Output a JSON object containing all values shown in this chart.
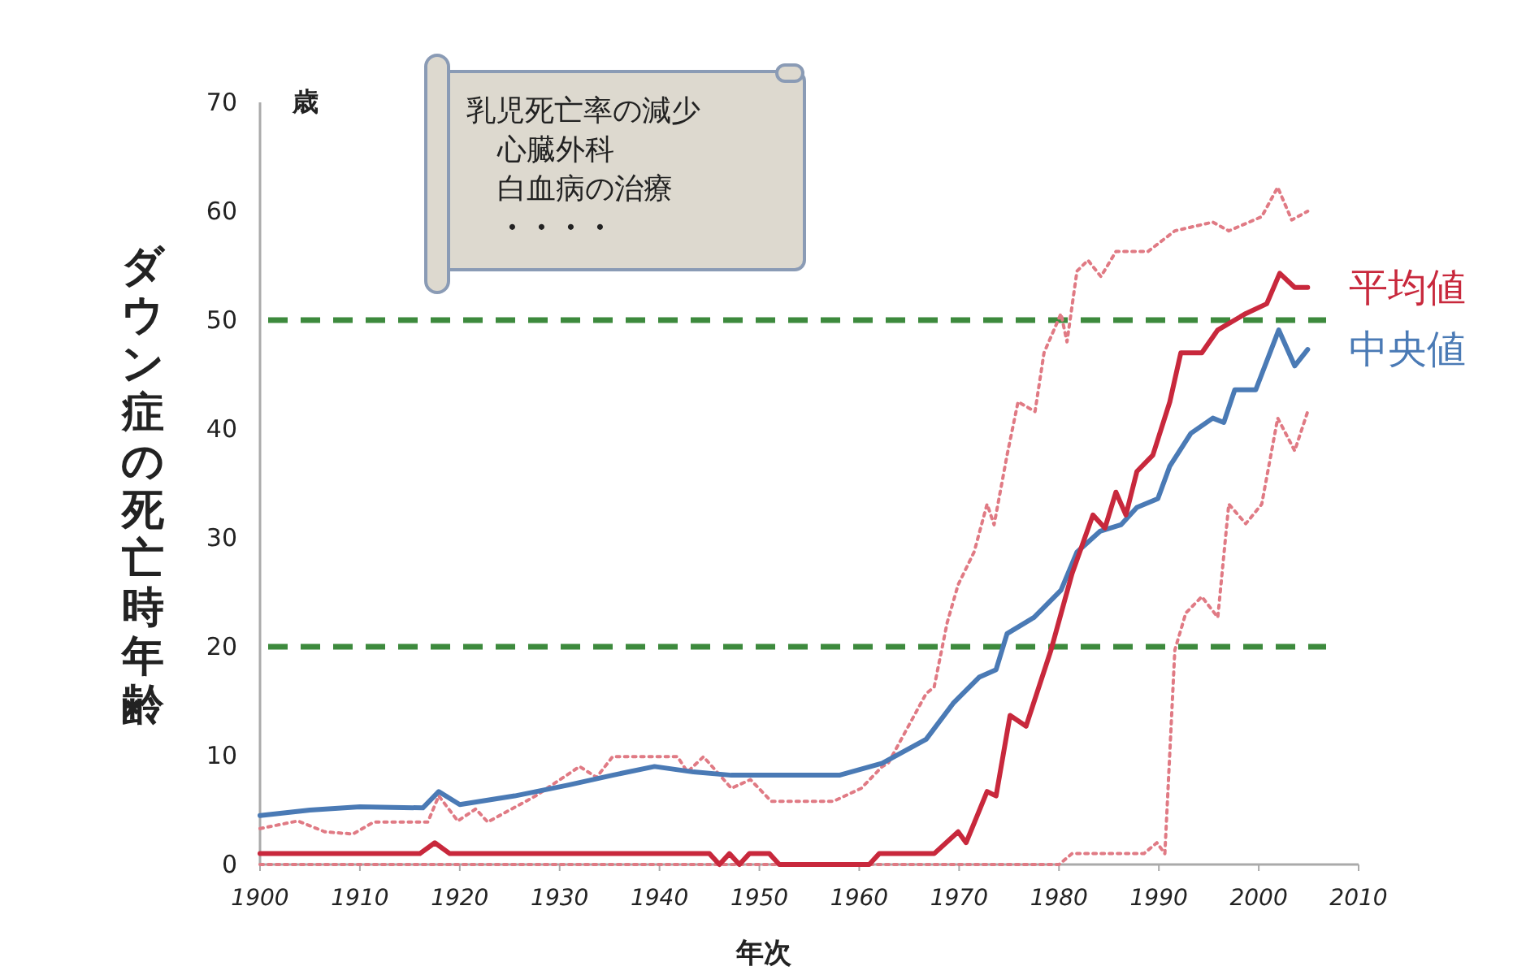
{
  "chart_data": {
    "type": "line",
    "xlabel": "年次",
    "ylabel": "ダウン症の死亡時年齢",
    "annotations": [
      "歳",
      "乳児死亡率の減少",
      "心臓外科",
      "白血病の治療",
      "・・・・"
    ],
    "xlim": [
      1900,
      2010
    ],
    "xticks": [
      1900,
      1910,
      1920,
      1930,
      1940,
      1950,
      1960,
      1970,
      1980,
      1990,
      2000,
      2010
    ],
    "ylim": [
      0,
      70
    ],
    "yticks": [
      0,
      10,
      20,
      30,
      40,
      50,
      60,
      70
    ],
    "ref_lines": [
      {
        "axis": "y",
        "value": 20,
        "label": null,
        "color": "#3d8a3d",
        "line_style": "dashed"
      },
      {
        "axis": "y",
        "value": 50,
        "label": null,
        "color": "#3d8a3d",
        "line_style": "dashed"
      }
    ],
    "series": [
      {
        "color": "#e07a84",
        "line_style": "dotted",
        "x": [
          1900,
          1903.8,
          1906.5,
          1909.3,
          1911.4,
          1916.8,
          1917.9,
          1919.8,
          1921.6,
          1922.8,
          1927.6,
          1932,
          1933.7,
          1935.3,
          1941.8,
          1942.8,
          1944.4,
          1947.2,
          1949.1,
          1951.2,
          1957.4,
          1960.2,
          1962.3,
          1962.9,
          1966.7,
          1967.5,
          1968.8,
          1969.9,
          1971.5,
          1972.8,
          1973.5,
          1974.8,
          1975.9,
          1977.6,
          1978.5,
          1980.2,
          1980.8,
          1981.8,
          1982.9,
          1984.2,
          1985.7,
          1988.9,
          1991.6,
          1995.4,
          1997,
          2000.3,
          2001.9,
          2003.3,
          2004.9
        ],
        "values": [
          3.3,
          4,
          3,
          2.8,
          3.9,
          3.9,
          6.3,
          4,
          5.1,
          3.9,
          6.3,
          9,
          8,
          9.9,
          9.9,
          8.5,
          9.9,
          7,
          7.8,
          5.8,
          5.8,
          7,
          9,
          9.3,
          15.7,
          16.3,
          22.2,
          25.7,
          28.7,
          33.1,
          31.2,
          37.6,
          42.5,
          41.6,
          47,
          50.6,
          48,
          54.5,
          55.5,
          54,
          56.3,
          56.3,
          58.2,
          59,
          58.2,
          59.5,
          62.2,
          59.2,
          60
        ]
      },
      {
        "color": "#e07a84",
        "line_style": "dotted",
        "x": [
          1900,
          1980,
          1981.3,
          1988.5,
          1989.8,
          1990.6,
          1991.6,
          1992.7,
          1994.3,
          1995.9,
          1997,
          1998.7,
          2000.3,
          2001.9,
          2003.6,
          2004.9
        ],
        "values": [
          0,
          0,
          1,
          1,
          2,
          1,
          19.7,
          23.1,
          24.6,
          22.7,
          33.1,
          31.3,
          33.1,
          41,
          38,
          41.6
        ]
      },
      {
        "name": "中央値",
        "color": "#4a7ab5",
        "line_style": "solid",
        "x": [
          1900,
          1905,
          1910,
          1916.3,
          1917.9,
          1920,
          1925.5,
          1930.9,
          1935.3,
          1939.5,
          1943.4,
          1947.2,
          1952.5,
          1958,
          1962.3,
          1966.7,
          1969.4,
          1972,
          1973.7,
          1974.8,
          1977.5,
          1980.2,
          1981.8,
          1984.1,
          1986.2,
          1987.8,
          1989.9,
          1991.1,
          1993.2,
          1995.4,
          1996.5,
          1997.6,
          1999.7,
          2002,
          2003.6,
          2004.9
        ],
        "values": [
          4.5,
          5,
          5.3,
          5.2,
          6.7,
          5.5,
          6.3,
          7.3,
          8.2,
          9,
          8.5,
          8.2,
          8.2,
          8.2,
          9.3,
          11.5,
          14.8,
          17.2,
          17.9,
          21.2,
          22.7,
          25.2,
          28.7,
          30.6,
          31.2,
          32.8,
          33.6,
          36.6,
          39.6,
          41,
          40.6,
          43.6,
          43.6,
          49.1,
          45.8,
          47.3
        ]
      },
      {
        "name": "平均値",
        "color": "#c8283c",
        "line_style": "solid",
        "x": [
          1900,
          1916,
          1917.5,
          1919,
          1945,
          1946,
          1947,
          1948,
          1949,
          1951,
          1952,
          1961,
          1962,
          1967.5,
          1969.9,
          1970.7,
          1972.8,
          1973.7,
          1975.1,
          1976.7,
          1979.2,
          1981.3,
          1983.4,
          1984.6,
          1985.7,
          1986.7,
          1987.8,
          1989.4,
          1991.1,
          1992.2,
          1994.3,
          1995.9,
          1998.7,
          2000.8,
          2002.1,
          2003.6,
          2004.9
        ],
        "values": [
          1,
          1,
          2,
          1,
          1,
          0,
          1,
          0,
          1,
          1,
          0,
          0,
          1,
          1,
          3,
          2,
          6.7,
          6.3,
          13.7,
          12.7,
          19.7,
          26.7,
          32.1,
          30.9,
          34.2,
          32.1,
          36.1,
          37.6,
          42.5,
          47,
          47,
          49.1,
          50.6,
          51.5,
          54.3,
          53,
          53
        ]
      }
    ]
  }
}
